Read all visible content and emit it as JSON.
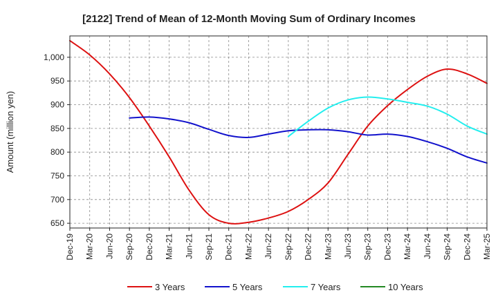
{
  "chart_data": {
    "type": "line",
    "title": "[2122]  Trend of Mean of 12-Month Moving Sum of Ordinary Incomes",
    "xlabel": "",
    "ylabel": "Amount (million yen)",
    "ylim": [
      640,
      1045
    ],
    "yticks": [
      650,
      700,
      750,
      800,
      850,
      900,
      950,
      1000
    ],
    "ytick_labels": [
      "650",
      "700",
      "750",
      "800",
      "850",
      "900",
      "950",
      "1,000"
    ],
    "grid": true,
    "legend_position": "bottom",
    "categories": [
      "Dec-19",
      "Mar-20",
      "Jun-20",
      "Sep-20",
      "Dec-20",
      "Mar-21",
      "Jun-21",
      "Sep-21",
      "Dec-21",
      "Mar-22",
      "Jun-22",
      "Sep-22",
      "Dec-22",
      "Mar-23",
      "Jun-23",
      "Sep-23",
      "Dec-23",
      "Mar-24",
      "Jun-24",
      "Sep-24",
      "Dec-24",
      "Mar-25"
    ],
    "series": [
      {
        "name": "3 Years",
        "color": "#dd1111",
        "values": [
          1035,
          1005,
          965,
          915,
          855,
          790,
          720,
          668,
          650,
          652,
          661,
          675,
          700,
          735,
          795,
          855,
          898,
          932,
          960,
          975,
          965,
          945
        ]
      },
      {
        "name": "5 Years",
        "color": "#1111cc",
        "values": [
          null,
          null,
          null,
          872,
          874,
          870,
          862,
          848,
          835,
          831,
          838,
          845,
          847,
          847,
          843,
          836,
          838,
          833,
          822,
          808,
          790,
          777
        ]
      },
      {
        "name": "7 Years",
        "color": "#22eeee",
        "values": [
          null,
          null,
          null,
          null,
          null,
          null,
          null,
          null,
          null,
          null,
          null,
          833,
          865,
          893,
          910,
          916,
          912,
          905,
          897,
          880,
          855,
          838
        ]
      },
      {
        "name": "10 Years",
        "color": "#228822",
        "values": [
          null,
          null,
          null,
          null,
          null,
          null,
          null,
          null,
          null,
          null,
          null,
          null,
          null,
          null,
          null,
          null,
          null,
          null,
          null,
          null,
          null,
          null
        ]
      }
    ]
  }
}
